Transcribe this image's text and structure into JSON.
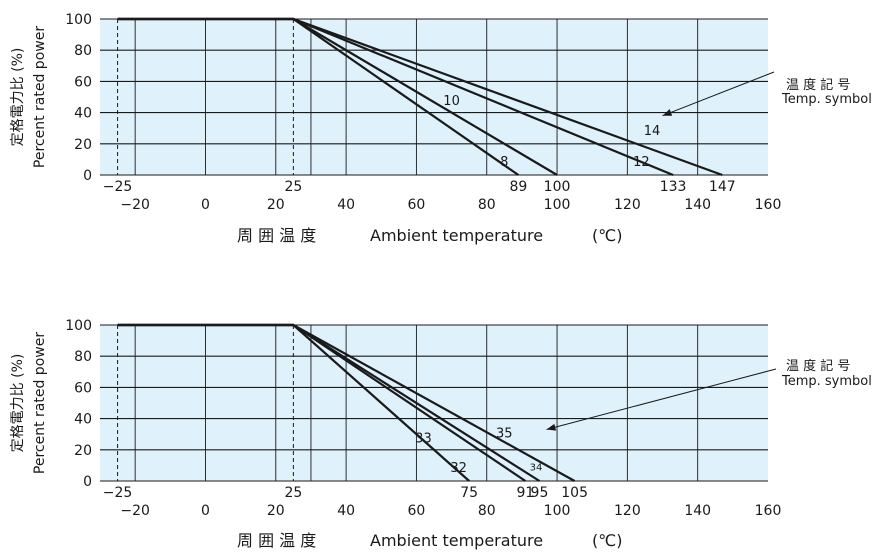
{
  "colors": {
    "plot_bg": "#dff1fa",
    "grid": "#1a1a1a",
    "line": "#1a1a1a",
    "text": "#1a1a1a"
  },
  "chart_data": [
    {
      "type": "line",
      "title": "",
      "ylabel_jp": "定格電力比 (%)",
      "ylabel": "Percent rated power",
      "xlabel_jp": "周 囲 温 度",
      "xlabel": "Ambient temperature",
      "xunit": "(℃)",
      "xlim": [
        -30,
        160
      ],
      "ylim": [
        0,
        100
      ],
      "y_ticks": [
        "0",
        "20",
        "40",
        "60",
        "80",
        "100"
      ],
      "x_ticks": [
        "−20",
        "0",
        "20",
        "40",
        "60",
        "80",
        "100",
        "120",
        "140",
        "160"
      ],
      "x_vgrid": [
        -20,
        0,
        20,
        30,
        40,
        60,
        80,
        100,
        120,
        140
      ],
      "dashed_x": [
        -25,
        25
      ],
      "upper_ticks": [
        {
          "x": -25,
          "label": "−25"
        },
        {
          "x": 25,
          "label": "25"
        },
        {
          "x": 89,
          "label": "89"
        },
        {
          "x": 100,
          "label": "100"
        },
        {
          "x": 133,
          "label": "133"
        },
        {
          "x": 147,
          "label": "147"
        }
      ],
      "series": [
        {
          "name": "8",
          "points": [
            [
              -25,
              100
            ],
            [
              25,
              100
            ],
            [
              89,
              0
            ]
          ],
          "label_at": [
            85,
            9
          ],
          "label_size": 13
        },
        {
          "name": "10",
          "points": [
            [
              -25,
              100
            ],
            [
              25,
              100
            ],
            [
              100,
              0
            ]
          ],
          "label_at": [
            70,
            48
          ],
          "label_size": 13
        },
        {
          "name": "12",
          "points": [
            [
              -25,
              100
            ],
            [
              25,
              100
            ],
            [
              133,
              0
            ]
          ],
          "label_at": [
            124,
            9
          ],
          "label_size": 13
        },
        {
          "name": "14",
          "points": [
            [
              -25,
              100
            ],
            [
              25,
              100
            ],
            [
              147,
              0
            ]
          ],
          "label_at": [
            127,
            29
          ],
          "label_size": 13
        }
      ],
      "symbol_label_jp": "温 度 記 号",
      "symbol_label_en": "Temp. symbol",
      "arrow_to": [
        130,
        38
      ]
    },
    {
      "type": "line",
      "title": "",
      "ylabel_jp": "定格電力比 (%)",
      "ylabel": "Percent rated power",
      "xlabel_jp": "周 囲 温 度",
      "xlabel": "Ambient temperature",
      "xunit": "(℃)",
      "xlim": [
        -30,
        160
      ],
      "ylim": [
        0,
        100
      ],
      "y_ticks": [
        "0",
        "20",
        "40",
        "60",
        "80",
        "100"
      ],
      "x_ticks": [
        "−20",
        "0",
        "20",
        "40",
        "60",
        "80",
        "100",
        "120",
        "140",
        "160"
      ],
      "x_vgrid": [
        -20,
        0,
        20,
        30,
        40,
        60,
        80,
        100,
        120,
        140
      ],
      "dashed_x": [
        -25,
        25
      ],
      "upper_ticks": [
        {
          "x": -25,
          "label": "−25"
        },
        {
          "x": 25,
          "label": "25"
        },
        {
          "x": 75,
          "label": "75"
        },
        {
          "x": 91,
          "label": "91"
        },
        {
          "x": 95,
          "label": "95"
        },
        {
          "x": 105,
          "label": "105"
        }
      ],
      "series": [
        {
          "name": "32",
          "points": [
            [
              -25,
              100
            ],
            [
              25,
              100
            ],
            [
              75,
              0
            ]
          ],
          "label_at": [
            72,
            9
          ],
          "label_size": 13
        },
        {
          "name": "33",
          "points": [
            [
              -25,
              100
            ],
            [
              25,
              100
            ],
            [
              91,
              0
            ]
          ],
          "label_at": [
            62,
            28
          ],
          "label_size": 13
        },
        {
          "name": "34",
          "points": [
            [
              -25,
              100
            ],
            [
              25,
              100
            ],
            [
              95,
              0
            ]
          ],
          "label_at": [
            94,
            10
          ],
          "label_size": 10
        },
        {
          "name": "35",
          "points": [
            [
              -25,
              100
            ],
            [
              25,
              100
            ],
            [
              105,
              0
            ]
          ],
          "label_at": [
            85,
            31
          ],
          "label_size": 13
        }
      ],
      "symbol_label_jp": "温 度 記 号",
      "symbol_label_en": "Temp. symbol",
      "arrow_to": [
        97,
        33
      ]
    }
  ]
}
